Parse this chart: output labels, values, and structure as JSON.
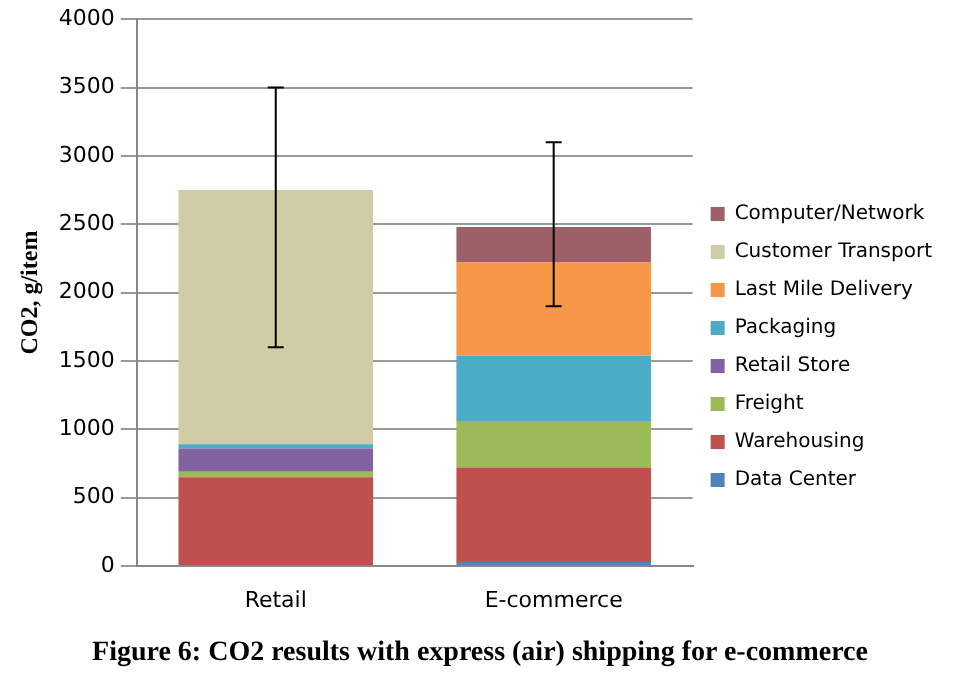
{
  "chart_data": {
    "type": "bar",
    "stacked": true,
    "title": "Figure 6: CO2 results with express (air) shipping for e-commerce",
    "ylabel": "CO2, g/item",
    "categories": [
      "Retail",
      "E-commerce"
    ],
    "ylim": [
      0,
      4000
    ],
    "yticks": [
      0,
      500,
      1000,
      1500,
      2000,
      2500,
      3000,
      3500,
      4000
    ],
    "grid": "y",
    "legend": "right",
    "series": [
      {
        "name": "Data Center",
        "color": "#4f81bd",
        "values": [
          0,
          30
        ]
      },
      {
        "name": "Warehousing",
        "color": "#c0504d",
        "values": [
          650,
          690
        ]
      },
      {
        "name": "Freight",
        "color": "#9bbb59",
        "values": [
          40,
          340
        ]
      },
      {
        "name": "Retail Store",
        "color": "#8064a2",
        "values": [
          170,
          0
        ]
      },
      {
        "name": "Packaging",
        "color": "#4bacc6",
        "values": [
          30,
          480
        ]
      },
      {
        "name": "Last Mile Delivery",
        "color": "#f79646",
        "values": [
          0,
          680
        ]
      },
      {
        "name": "Customer Transport",
        "color": "#cfcca6",
        "values": [
          1860,
          0
        ]
      },
      {
        "name": "Computer/Network",
        "color": "#9e6068",
        "values": [
          0,
          260
        ],
        "errors": [
          [
            1600,
            3500
          ],
          [
            1900,
            3100
          ]
        ]
      }
    ]
  }
}
